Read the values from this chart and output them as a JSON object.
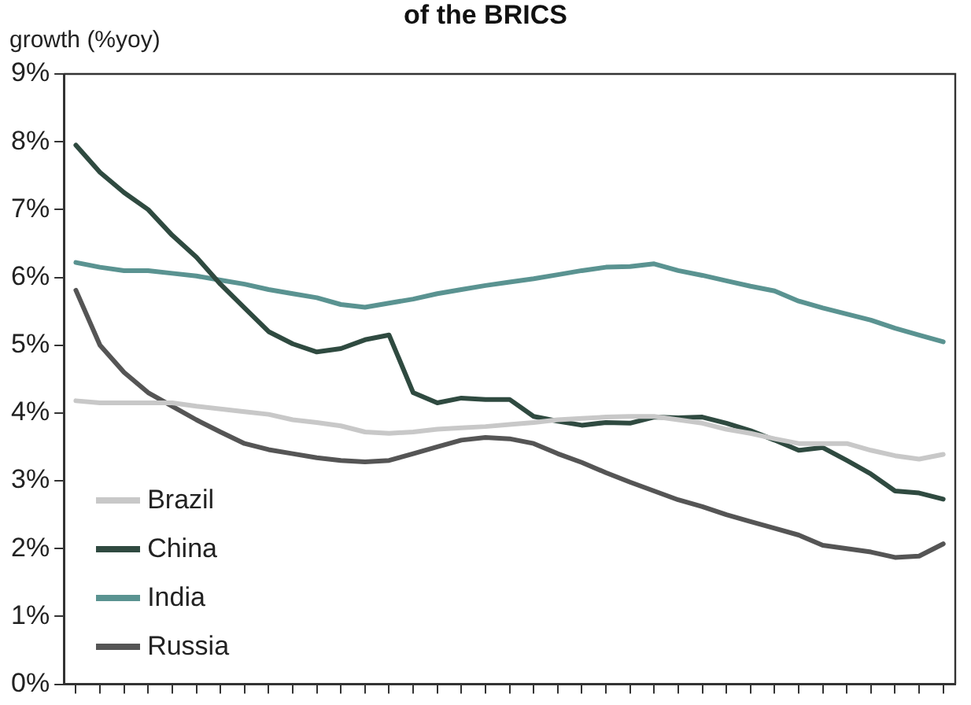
{
  "chart_data": {
    "type": "line",
    "title": "of the BRICS",
    "ylabel": "growth (%yoy)",
    "categories": [
      null,
      null,
      null,
      null,
      null,
      null,
      null,
      null,
      null,
      null,
      null,
      null,
      null,
      null,
      null,
      null,
      null,
      null,
      null,
      null,
      null,
      null,
      null,
      null,
      null,
      null,
      null,
      null,
      null,
      null,
      null,
      null,
      null,
      null,
      null,
      null,
      null
    ],
    "series": [
      {
        "name": "Brazil",
        "color": "#c8c8c8",
        "values": [
          4.18,
          4.15,
          4.15,
          4.15,
          4.15,
          4.1,
          4.06,
          4.02,
          3.98,
          3.9,
          3.86,
          3.81,
          3.72,
          3.7,
          3.72,
          3.76,
          3.78,
          3.8,
          3.83,
          3.86,
          3.9,
          3.92,
          3.94,
          3.95,
          3.95,
          3.9,
          3.85,
          3.76,
          3.7,
          3.62,
          3.55,
          3.55,
          3.55,
          3.45,
          3.37,
          3.32,
          3.39
        ]
      },
      {
        "name": "China",
        "color": "#2f4a40",
        "values": [
          7.95,
          7.55,
          7.25,
          7.0,
          6.62,
          6.3,
          5.9,
          5.55,
          5.2,
          5.02,
          4.9,
          4.95,
          5.08,
          5.15,
          4.3,
          4.15,
          4.22,
          4.2,
          4.2,
          3.95,
          3.88,
          3.82,
          3.86,
          3.85,
          3.94,
          3.93,
          3.94,
          3.85,
          3.74,
          3.6,
          3.45,
          3.49,
          3.3,
          3.1,
          2.85,
          2.82,
          2.73
        ]
      },
      {
        "name": "India",
        "color": "#5a9391",
        "values": [
          6.22,
          6.15,
          6.1,
          6.1,
          6.06,
          6.02,
          5.96,
          5.9,
          5.82,
          5.76,
          5.7,
          5.6,
          5.56,
          5.62,
          5.68,
          5.76,
          5.82,
          5.88,
          5.93,
          5.98,
          6.04,
          6.1,
          6.15,
          6.16,
          6.2,
          6.1,
          6.03,
          5.95,
          5.87,
          5.8,
          5.65,
          5.55,
          5.46,
          5.37,
          5.25,
          5.15,
          5.05
        ]
      },
      {
        "name": "Russia",
        "color": "#555555",
        "values": [
          5.81,
          5.0,
          4.6,
          4.3,
          4.1,
          3.9,
          3.72,
          3.55,
          3.46,
          3.4,
          3.34,
          3.3,
          3.28,
          3.3,
          3.4,
          3.5,
          3.6,
          3.64,
          3.62,
          3.55,
          3.4,
          3.27,
          3.12,
          2.98,
          2.85,
          2.72,
          2.62,
          2.5,
          2.4,
          2.3,
          2.2,
          2.05,
          2.0,
          1.95,
          1.87,
          1.89,
          2.07
        ]
      }
    ],
    "ylim": [
      0,
      9
    ],
    "yticks": [
      {
        "value": 0,
        "label": "0%"
      },
      {
        "value": 1,
        "label": "1%"
      },
      {
        "value": 2,
        "label": "2%"
      },
      {
        "value": 3,
        "label": "3%"
      },
      {
        "value": 4,
        "label": "4%"
      },
      {
        "value": 5,
        "label": "5%"
      },
      {
        "value": 6,
        "label": "6%"
      },
      {
        "value": 7,
        "label": "7%"
      },
      {
        "value": 8,
        "label": "8%"
      },
      {
        "value": 9,
        "label": "9%"
      }
    ],
    "grid": false,
    "legend": "bottom left",
    "marker": "none",
    "line_style": "solid"
  }
}
